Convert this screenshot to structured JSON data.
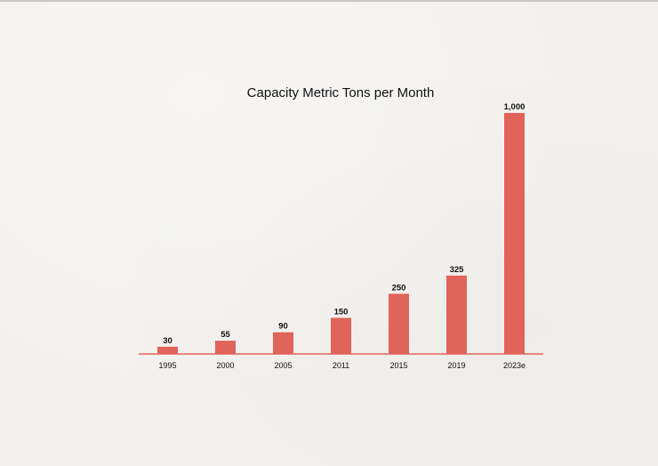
{
  "chart_data": {
    "type": "bar",
    "title": "Capacity Metric Tons per Month",
    "xlabel": "",
    "ylabel": "",
    "categories": [
      "1995",
      "2000",
      "2005",
      "2011",
      "2015",
      "2019",
      "2023e"
    ],
    "values": [
      30,
      55,
      90,
      150,
      250,
      325,
      1000
    ],
    "value_labels": [
      "30",
      "55",
      "90",
      "150",
      "250",
      "325",
      "1,000"
    ],
    "ylim": [
      0,
      1000
    ],
    "grid": false,
    "legend": "none",
    "colors": {
      "bar": "#e0645a",
      "axis": "#e0645a",
      "text": "#111111",
      "background": "#f3f1ee"
    }
  }
}
